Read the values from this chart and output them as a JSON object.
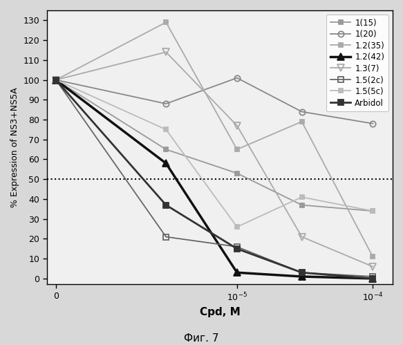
{
  "title": "",
  "xlabel": "Cpd, M",
  "ylabel": "% Expression of NS3+NS5A",
  "caption": "Фиг. 7",
  "ylim": [
    -3,
    135
  ],
  "yticks": [
    0,
    10,
    20,
    30,
    40,
    50,
    60,
    70,
    80,
    90,
    100,
    110,
    120,
    130
  ],
  "hline_y": 50,
  "series": [
    {
      "label": "1(15)",
      "color": "#999999",
      "linewidth": 1.3,
      "marker": "s",
      "markersize": 5,
      "fillstyle": "full",
      "linestyle": "-",
      "x": [
        0,
        3e-06,
        1e-05,
        3e-05,
        0.0001
      ],
      "y": [
        100,
        65,
        53,
        37,
        34
      ]
    },
    {
      "label": "1(20)",
      "color": "#888888",
      "linewidth": 1.3,
      "marker": "o",
      "markersize": 6,
      "fillstyle": "none",
      "linestyle": "-",
      "x": [
        0,
        3e-06,
        1e-05,
        3e-05,
        0.0001
      ],
      "y": [
        100,
        88,
        101,
        84,
        78
      ]
    },
    {
      "label": "1.2(35)",
      "color": "#aaaaaa",
      "linewidth": 1.3,
      "marker": "s",
      "markersize": 5,
      "fillstyle": "full",
      "linestyle": "-",
      "x": [
        0,
        3e-06,
        1e-05,
        3e-05,
        0.0001
      ],
      "y": [
        100,
        129,
        65,
        79,
        11
      ]
    },
    {
      "label": "1.2(42)",
      "color": "#111111",
      "linewidth": 2.5,
      "marker": "^",
      "markersize": 7,
      "fillstyle": "full",
      "linestyle": "-",
      "x": [
        0,
        3e-06,
        1e-05,
        3e-05,
        0.0001
      ],
      "y": [
        100,
        58,
        3,
        1,
        0
      ]
    },
    {
      "label": "1.3(7)",
      "color": "#aaaaaa",
      "linewidth": 1.3,
      "marker": "v",
      "markersize": 7,
      "fillstyle": "none",
      "linestyle": "-",
      "x": [
        0,
        3e-06,
        1e-05,
        3e-05,
        0.0001
      ],
      "y": [
        100,
        114,
        77,
        21,
        6
      ]
    },
    {
      "label": "1.5(2c)",
      "color": "#666666",
      "linewidth": 1.3,
      "marker": "s",
      "markersize": 6,
      "fillstyle": "none",
      "linestyle": "-",
      "x": [
        0,
        3e-06,
        1e-05,
        3e-05,
        0.0001
      ],
      "y": [
        100,
        21,
        16,
        3,
        1
      ]
    },
    {
      "label": "1.5(5c)",
      "color": "#bbbbbb",
      "linewidth": 1.3,
      "marker": "s",
      "markersize": 5,
      "fillstyle": "full",
      "linestyle": "-",
      "x": [
        0,
        3e-06,
        1e-05,
        3e-05,
        0.0001
      ],
      "y": [
        100,
        75,
        26,
        41,
        34
      ]
    },
    {
      "label": "Arbidol",
      "color": "#333333",
      "linewidth": 2.0,
      "marker": "s",
      "markersize": 6,
      "fillstyle": "full",
      "linestyle": "-",
      "x": [
        0,
        3e-06,
        1e-05,
        3e-05,
        0.0001
      ],
      "y": [
        100,
        37,
        15,
        3,
        0
      ]
    }
  ],
  "background_color": "#e8e8e8",
  "plot_bg_color": "#f0f0f0",
  "fig_bg_color": "#d8d8d8"
}
